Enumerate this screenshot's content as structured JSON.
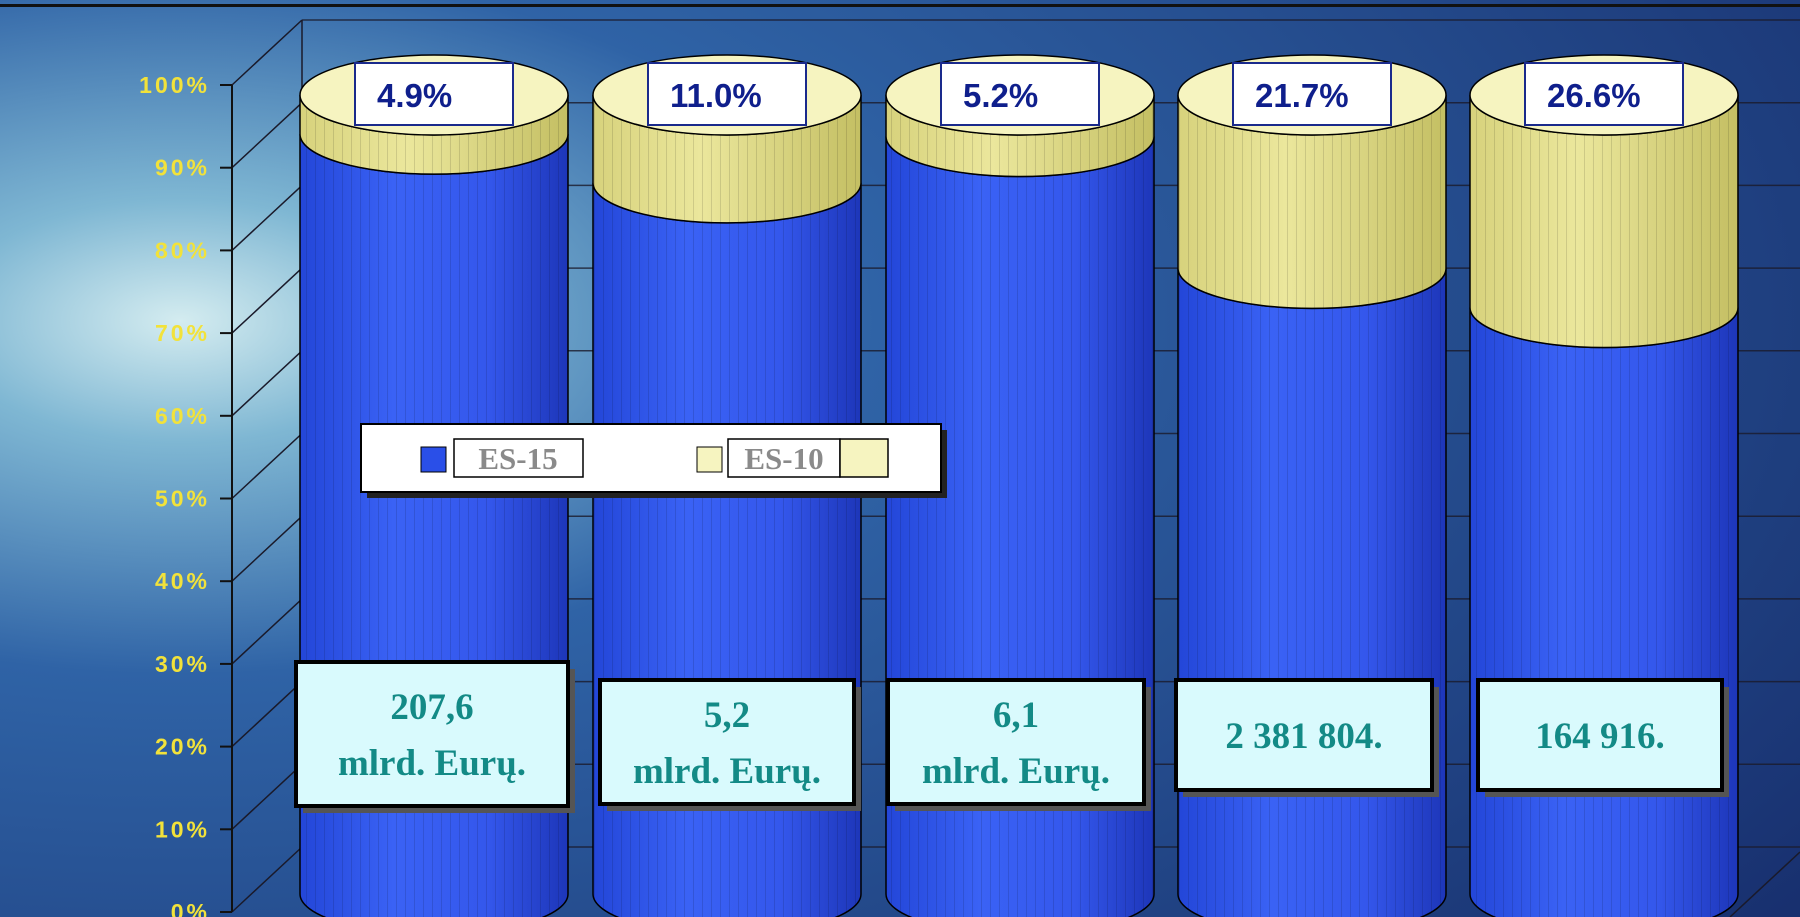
{
  "chart_data": {
    "type": "bar",
    "style": "stacked-100-percent-3d-cylinder",
    "y_ticks": [
      "0%",
      "10%",
      "20%",
      "30%",
      "40%",
      "50%",
      "60%",
      "70%",
      "80%",
      "90%",
      "100%"
    ],
    "ylim": [
      0,
      100
    ],
    "grid": true,
    "series": [
      {
        "name": "ES-15",
        "values": [
          95.1,
          89.0,
          94.8,
          78.3,
          73.4
        ]
      },
      {
        "name": "ES-10",
        "values": [
          4.9,
          11.0,
          5.2,
          21.7,
          26.6
        ]
      }
    ],
    "top_labels": [
      "4.9%",
      "11.0%",
      "5.2%",
      "21.7%",
      "26.6%"
    ],
    "total_labels": [
      [
        "207,6",
        "mlrd. Eurų."
      ],
      [
        "5,2",
        "mlrd. Eurų."
      ],
      [
        "6,1",
        "mlrd. Eurų."
      ],
      [
        "2 381 804."
      ],
      [
        "164 916."
      ]
    ],
    "legend": {
      "placement": "middle-left",
      "entries": [
        "ES-15",
        "ES-10"
      ]
    }
  },
  "colors": {
    "es15": "#3a5ff2",
    "es15_dark": "#1c34b8",
    "es10": "#e4e08f",
    "es10_dark": "#c9c46a",
    "es10_light": "#f6f4c0",
    "tick_label": "#f2e23a",
    "top_label_text": "#0f1f8c",
    "total_label_text": "#138a86",
    "total_label_bg": "#d9fafd",
    "legend_text": "#8a8a8a",
    "grid": "#1a1a2a"
  }
}
